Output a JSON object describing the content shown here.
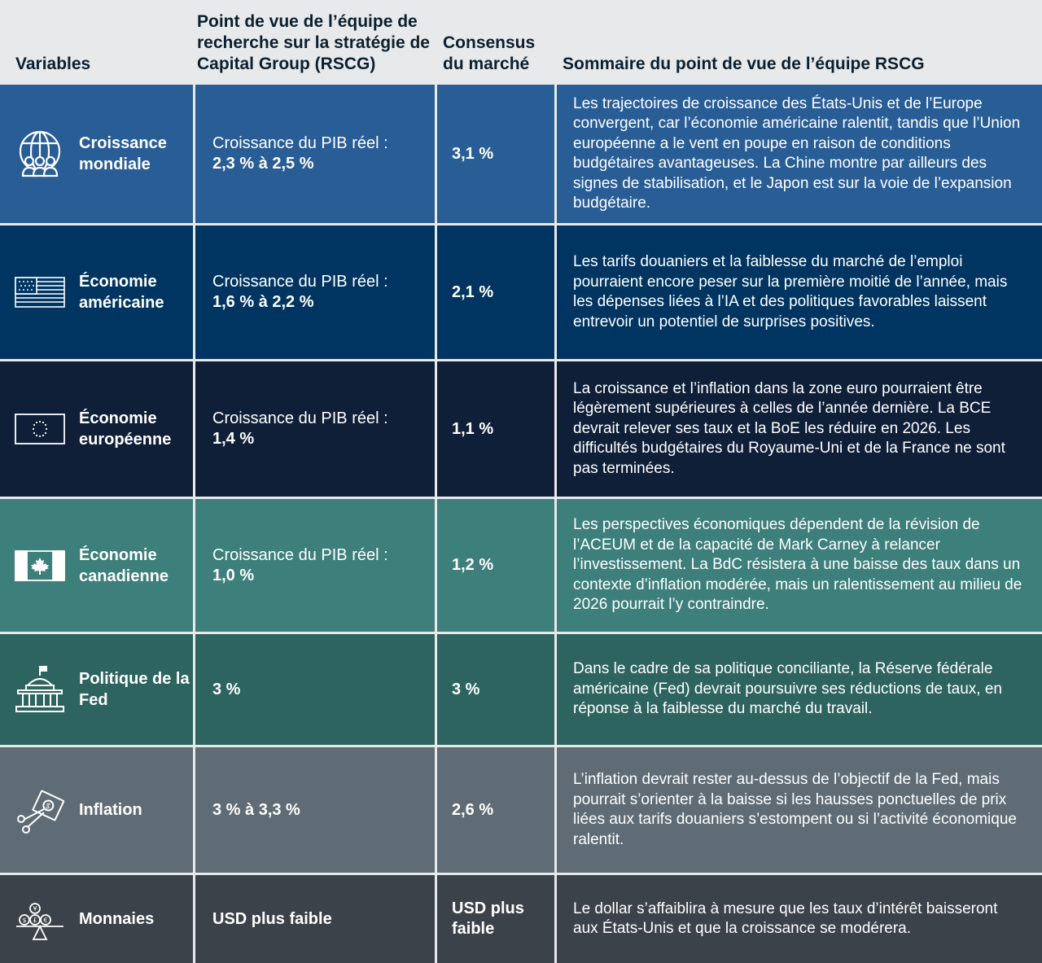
{
  "header": {
    "variables": "Variables",
    "team_view": "Point de vue de l’équipe de recherche sur la stratégie de Capital Group (RSCG)",
    "consensus": "Consensus du marché",
    "summary": "Sommaire du point de vue de l’équipe RSCG"
  },
  "colors": {
    "header_bg": "#e7e9eb",
    "croissance": "#295d96",
    "us": "#003561",
    "europe": "#0f1f38",
    "canada": "#3d7f7b",
    "fed": "#2e6460",
    "inflation": "#5f6c76",
    "monnaies": "#3b4249"
  },
  "rows": [
    {
      "key": "croissance",
      "icon": "globe-people-icon",
      "label": "Croissance mondiale",
      "view_line1": "Croissance du PIB réel :",
      "view_line2": "2,3 % à 2,5 %",
      "consensus": "3,1 %",
      "summary": "Les trajectoires de croissance des États-Unis et de l’Europe convergent, car l’économie américaine ralentit, tandis que l’Union européenne a le vent en poupe en raison de conditions budgétaires avantageuses. La Chine montre par ailleurs des signes de stabilisation, et le Japon est sur la voie de l’expansion budgétaire."
    },
    {
      "key": "us",
      "icon": "us-flag-icon",
      "label": "Économie américaine",
      "view_line1": "Croissance du PIB réel :",
      "view_line2": "1,6 % à 2,2 %",
      "consensus": "2,1 %",
      "summary": "Les tarifs douaniers et la faiblesse du marché de l’emploi pourraient encore peser sur la première moitié de l’année, mais les dépenses liées à l’IA et des politiques favorables laissent entrevoir un potentiel de surprises positives."
    },
    {
      "key": "europe",
      "icon": "eu-flag-icon",
      "label": "Économie européenne",
      "view_line1": "Croissance du PIB réel :",
      "view_line2": "1,4 %",
      "consensus": "1,1 %",
      "summary": "La croissance et l’inflation dans la zone euro pourraient être légèrement supérieures à celles de l’année dernière. La BCE devrait relever ses taux et la BoE les réduire en 2026. Les difficultés budgétaires du Royaume-Uni et de la France ne sont pas terminées."
    },
    {
      "key": "canada",
      "icon": "canada-flag-icon",
      "label": "Économie canadienne",
      "view_line1": "Croissance du PIB réel :",
      "view_line2": "1,0 %",
      "consensus": "1,2 %",
      "summary": "Les perspectives économiques dépendent de la révision de l’ACEUM et de la capacité de Mark Carney à relancer l’investissement. La BdC résistera à une baisse des taux dans un contexte d’inflation modérée, mais un ralentissement au milieu de 2026 pourrait l’y contraindre."
    },
    {
      "key": "fed",
      "icon": "capitol-building-icon",
      "label": "Politique de la Fed",
      "view_line1": "",
      "view_line2": "3 %",
      "consensus": "3 %",
      "summary": "Dans le cadre de sa politique conciliante, la Réserve fédérale américaine (Fed) devrait poursuivre ses réductions de taux, en réponse à la faiblesse du marché du travail."
    },
    {
      "key": "inflation",
      "icon": "money-scissors-icon",
      "label": "Inflation",
      "view_line1": "",
      "view_line2": "3 % à 3,3 %",
      "consensus": "2,6 %",
      "summary": "L’inflation devrait rester au-dessus de l’objectif de la Fed, mais pourrait s’orienter à la baisse si les hausses ponctuelles de prix liées aux tarifs douaniers s’estompent ou si l’activité économique ralentit."
    },
    {
      "key": "monnaies",
      "icon": "currency-scale-icon",
      "label": "Monnaies",
      "view_line1": "",
      "view_line2": "USD plus faible",
      "consensus": "USD plus faible",
      "summary": "Le dollar s’affaiblira à mesure que les taux d’intérêt baisseront aux États-Unis et que la croissance se modérera."
    }
  ]
}
